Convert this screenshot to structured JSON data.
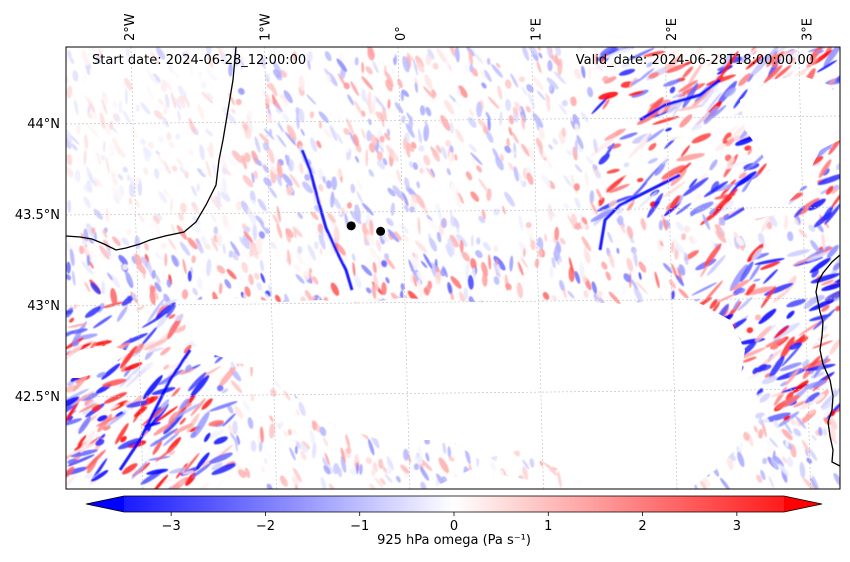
{
  "map": {
    "start_date": "Start date: 2024-06-28_12:00:00",
    "valid_date": "Valid_date: 2024-06-28T18:00:00.00",
    "lon_labels": [
      "2°W",
      "1°W",
      "0°",
      "1°E",
      "2°E",
      "3°E"
    ],
    "lat_labels": [
      "44°N",
      "43.5°N",
      "43°N",
      "42.5°N"
    ],
    "markers": [
      {
        "lon": -0.62,
        "lat": 43.38
      },
      {
        "lon": -0.4,
        "lat": 43.35
      }
    ],
    "colors": {
      "negative": "#0000ff",
      "zero": "#ffffff",
      "positive": "#ff0000",
      "coast": "#000000"
    }
  },
  "colorbar": {
    "label": "925 hPa omega (Pa s⁻¹)",
    "min": -3.5,
    "max": 3.5,
    "ticks": [
      -3,
      -2,
      -1,
      0,
      1,
      2,
      3
    ],
    "tick_labels": [
      "−3",
      "−2",
      "−1",
      "0",
      "1",
      "2",
      "3"
    ],
    "extend": "both"
  }
}
